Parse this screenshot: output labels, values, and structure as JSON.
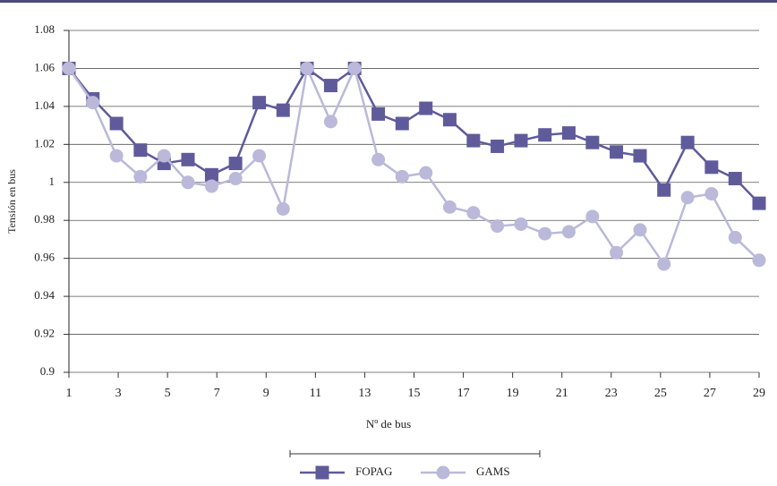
{
  "chart_data": {
    "type": "line",
    "x_label": "Nº de bus",
    "y_label": "Tensión en bus",
    "x": [
      1,
      1.97,
      2.93,
      3.9,
      4.86,
      5.83,
      6.79,
      7.76,
      8.72,
      9.69,
      10.66,
      11.62,
      12.59,
      13.55,
      14.52,
      15.48,
      16.45,
      17.41,
      18.38,
      19.34,
      20.31,
      21.28,
      22.24,
      23.21,
      24.17,
      25.14,
      26.1,
      27.07,
      28.03,
      29
    ],
    "series": [
      {
        "name": "FOPAG",
        "color": "#5f5b9b",
        "marker": "square",
        "values": [
          1.06,
          1.044,
          1.031,
          1.017,
          1.01,
          1.012,
          1.004,
          1.01,
          1.042,
          1.038,
          1.06,
          1.051,
          1.06,
          1.036,
          1.031,
          1.039,
          1.033,
          1.022,
          1.019,
          1.022,
          1.025,
          1.026,
          1.021,
          1.016,
          1.014,
          0.996,
          1.021,
          1.008,
          1.002,
          0.989
        ]
      },
      {
        "name": "GAMS",
        "color": "#bab9da",
        "marker": "circle",
        "values": [
          1.06,
          1.042,
          1.014,
          1.003,
          1.014,
          1.0,
          0.998,
          1.002,
          1.014,
          0.986,
          1.06,
          1.032,
          1.06,
          1.012,
          1.003,
          1.005,
          0.987,
          0.984,
          0.977,
          0.978,
          0.973,
          0.974,
          0.982,
          0.963,
          0.975,
          0.957,
          0.992,
          0.994,
          0.971,
          0.959
        ]
      }
    ],
    "xlim": [
      1,
      29
    ],
    "xticks": [
      1,
      3,
      5,
      7,
      9,
      11,
      13,
      15,
      17,
      19,
      21,
      23,
      25,
      27,
      29
    ],
    "ylim": [
      0.9,
      1.08
    ],
    "yticks": [
      0.9,
      0.92,
      0.94,
      0.96,
      0.98,
      1,
      1.02,
      1.04,
      1.06,
      1.08
    ],
    "grid": true,
    "legend": "bottom"
  }
}
